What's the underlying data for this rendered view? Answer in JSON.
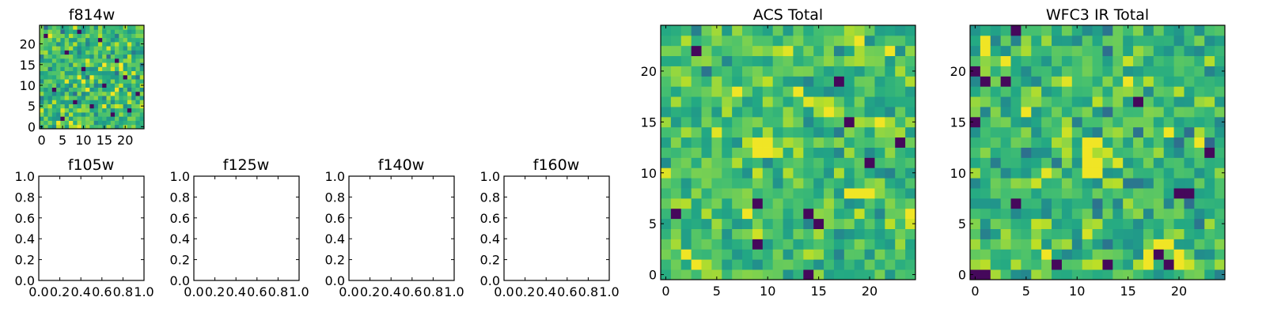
{
  "figure": {
    "background": "#ffffff"
  },
  "chart_data": [
    {
      "id": "f814w",
      "type": "heatmap",
      "title": "f814w",
      "grid_shape": [
        25,
        25
      ],
      "x_ticks": [
        0,
        5,
        10,
        15,
        20
      ],
      "y_ticks": [
        0,
        5,
        10,
        15,
        20
      ],
      "xlim": [
        -0.5,
        24.5
      ],
      "ylim": [
        -0.5,
        24.5
      ],
      "colormap": "viridis",
      "color_range": [
        0,
        1
      ],
      "seed": 814,
      "mean_level": 0.68,
      "spread": 0.13,
      "low_pixels": [
        [
          17,
          3
        ],
        [
          8,
          6
        ],
        [
          12,
          5
        ],
        [
          3,
          9
        ],
        [
          20,
          12
        ],
        [
          6,
          18
        ],
        [
          14,
          21
        ],
        [
          23,
          8
        ],
        [
          10,
          14
        ],
        [
          1,
          22
        ],
        [
          18,
          16
        ],
        [
          5,
          2
        ],
        [
          21,
          4
        ],
        [
          9,
          23
        ],
        [
          15,
          10
        ]
      ],
      "high_pixels": [
        [
          9,
          12
        ],
        [
          10,
          11
        ],
        [
          12,
          12
        ],
        [
          11,
          9
        ],
        [
          17,
          8
        ],
        [
          18,
          9
        ],
        [
          7,
          1
        ],
        [
          9,
          0
        ],
        [
          4,
          1
        ],
        [
          2,
          22
        ],
        [
          15,
          5
        ],
        [
          19,
          14
        ]
      ]
    },
    {
      "id": "f105w",
      "type": "heatmap",
      "title": "f105w",
      "empty": true,
      "x_ticks": [
        "0.0",
        "0.2",
        "0.4",
        "0.6",
        "0.8",
        "1.0"
      ],
      "y_ticks": [
        "0.0",
        "0.2",
        "0.4",
        "0.6",
        "0.8",
        "1.0"
      ],
      "xlim": [
        0,
        1
      ],
      "ylim": [
        0,
        1
      ]
    },
    {
      "id": "f125w",
      "type": "heatmap",
      "title": "f125w",
      "empty": true,
      "x_ticks": [
        "0.0",
        "0.2",
        "0.4",
        "0.6",
        "0.8",
        "1.0"
      ],
      "y_ticks": [
        "0.0",
        "0.2",
        "0.4",
        "0.6",
        "0.8",
        "1.0"
      ],
      "xlim": [
        0,
        1
      ],
      "ylim": [
        0,
        1
      ]
    },
    {
      "id": "f140w",
      "type": "heatmap",
      "title": "f140w",
      "empty": true,
      "x_ticks": [
        "0.0",
        "0.2",
        "0.4",
        "0.6",
        "0.8",
        "1.0"
      ],
      "y_ticks": [
        "0.0",
        "0.2",
        "0.4",
        "0.6",
        "0.8",
        "1.0"
      ],
      "xlim": [
        0,
        1
      ],
      "ylim": [
        0,
        1
      ]
    },
    {
      "id": "f160w",
      "type": "heatmap",
      "title": "f160w",
      "empty": true,
      "x_ticks": [
        "0.0",
        "0.2",
        "0.4",
        "0.6",
        "0.8",
        "1.0"
      ],
      "y_ticks": [
        "0.0",
        "0.2",
        "0.4",
        "0.6",
        "0.8",
        "1.0"
      ],
      "xlim": [
        0,
        1
      ],
      "ylim": [
        0,
        1
      ]
    },
    {
      "id": "acs_total",
      "type": "heatmap",
      "title": "ACS Total",
      "grid_shape": [
        25,
        25
      ],
      "x_ticks": [
        0,
        5,
        10,
        15,
        20
      ],
      "y_ticks": [
        0,
        5,
        10,
        15,
        20
      ],
      "xlim": [
        -0.5,
        24.5
      ],
      "ylim": [
        -0.5,
        24.5
      ],
      "colormap": "viridis",
      "color_range": [
        0,
        1
      ],
      "seed": 2017,
      "mean_level": 0.7,
      "spread": 0.11,
      "low_pixels": [
        [
          3,
          22
        ],
        [
          17,
          19
        ],
        [
          9,
          7
        ],
        [
          14,
          6
        ],
        [
          15,
          5
        ],
        [
          9,
          3
        ],
        [
          20,
          11
        ],
        [
          23,
          13
        ],
        [
          18,
          15
        ],
        [
          1,
          6
        ],
        [
          14,
          0
        ]
      ],
      "high_pixels": [
        [
          9,
          13
        ],
        [
          10,
          13
        ],
        [
          9,
          12
        ],
        [
          10,
          12
        ],
        [
          20,
          8
        ],
        [
          19,
          8
        ],
        [
          18,
          8
        ],
        [
          7,
          18
        ],
        [
          22,
          22
        ],
        [
          8,
          6
        ],
        [
          2,
          2
        ],
        [
          3,
          1
        ],
        [
          19,
          23
        ],
        [
          24,
          6
        ],
        [
          13,
          18
        ],
        [
          16,
          16
        ],
        [
          21,
          15
        ]
      ]
    },
    {
      "id": "wfc3_ir_total",
      "type": "heatmap",
      "title": "WFC3 IR Total",
      "grid_shape": [
        25,
        25
      ],
      "x_ticks": [
        0,
        5,
        10,
        15,
        20
      ],
      "y_ticks": [
        0,
        5,
        10,
        15,
        20
      ],
      "xlim": [
        -0.5,
        24.5
      ],
      "ylim": [
        -0.5,
        24.5
      ],
      "colormap": "viridis",
      "color_range": [
        0,
        1
      ],
      "seed": 3110,
      "mean_level": 0.66,
      "spread": 0.12,
      "low_pixels": [
        [
          4,
          24
        ],
        [
          0,
          20
        ],
        [
          1,
          19
        ],
        [
          3,
          19
        ],
        [
          0,
          15
        ],
        [
          23,
          12
        ],
        [
          4,
          7
        ],
        [
          20,
          8
        ],
        [
          21,
          8
        ],
        [
          18,
          2
        ],
        [
          19,
          1
        ],
        [
          8,
          1
        ],
        [
          13,
          1
        ],
        [
          0,
          0
        ],
        [
          1,
          0
        ],
        [
          16,
          17
        ]
      ],
      "high_pixels": [
        [
          1,
          23
        ],
        [
          1,
          22
        ],
        [
          3,
          21
        ],
        [
          11,
          13
        ],
        [
          12,
          13
        ],
        [
          11,
          12
        ],
        [
          11,
          11
        ],
        [
          12,
          11
        ],
        [
          11,
          10
        ],
        [
          12,
          10
        ],
        [
          18,
          3
        ],
        [
          19,
          3
        ],
        [
          17,
          2
        ],
        [
          20,
          2
        ],
        [
          17,
          1
        ],
        [
          20,
          1
        ],
        [
          5,
          16
        ],
        [
          15,
          19
        ],
        [
          19,
          14
        ],
        [
          22,
          13
        ],
        [
          7,
          2
        ]
      ]
    }
  ]
}
